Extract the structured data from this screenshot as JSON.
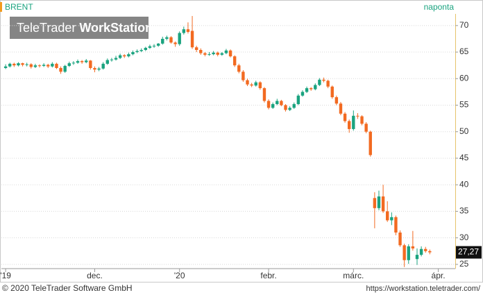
{
  "chart_data": {
    "type": "candlestick",
    "title": "BRENT",
    "interval": "naponta",
    "watermark": {
      "brand": "TeleTrader",
      "product": "WorkStation"
    },
    "footer_left": "© 2020 TeleTrader Software GmbH",
    "footer_right": "https://workstation.teletrader.com/",
    "up_color": "#1aa37f",
    "down_color": "#f26a21",
    "grid": true,
    "ylim": [
      24.2,
      72.2
    ],
    "yticks": [
      25,
      30,
      35,
      40,
      45,
      50,
      55,
      60,
      65,
      70
    ],
    "xlim": [
      -1,
      106
    ],
    "xticks": [
      {
        "value": 0,
        "label": "'19"
      },
      {
        "value": 21,
        "label": "dec."
      },
      {
        "value": 41,
        "label": "'20"
      },
      {
        "value": 62,
        "label": "febr."
      },
      {
        "value": 82,
        "label": "márc."
      },
      {
        "value": 102,
        "label": "ápr."
      }
    ],
    "last_label": "27,27",
    "ohlc": [
      [
        62.0,
        62.7,
        61.8,
        62.3
      ],
      [
        62.3,
        63.0,
        62.1,
        62.8
      ],
      [
        62.8,
        63.0,
        62.2,
        62.5
      ],
      [
        62.5,
        63.1,
        62.3,
        62.9
      ],
      [
        62.9,
        63.0,
        62.3,
        62.6
      ],
      [
        62.6,
        63.0,
        62.3,
        62.7
      ],
      [
        62.7,
        62.9,
        61.9,
        62.2
      ],
      [
        62.2,
        62.8,
        62.0,
        62.5
      ],
      [
        62.5,
        62.7,
        62.1,
        62.4
      ],
      [
        62.4,
        62.9,
        62.2,
        62.6
      ],
      [
        62.6,
        62.8,
        62.0,
        62.3
      ],
      [
        62.3,
        63.1,
        62.1,
        62.8
      ],
      [
        62.8,
        63.0,
        61.8,
        62.0
      ],
      [
        62.0,
        62.3,
        60.9,
        61.3
      ],
      [
        61.3,
        62.6,
        61.1,
        62.4
      ],
      [
        62.4,
        63.2,
        62.2,
        62.9
      ],
      [
        62.9,
        63.3,
        62.6,
        63.0
      ],
      [
        63.0,
        63.6,
        62.8,
        63.3
      ],
      [
        63.3,
        63.5,
        62.8,
        63.1
      ],
      [
        63.1,
        63.7,
        62.9,
        63.4
      ],
      [
        63.4,
        63.5,
        61.7,
        62.0
      ],
      [
        62.0,
        62.3,
        61.2,
        61.7
      ],
      [
        61.7,
        62.2,
        61.4,
        61.9
      ],
      [
        61.9,
        63.1,
        61.7,
        62.8
      ],
      [
        62.8,
        63.8,
        62.6,
        63.5
      ],
      [
        63.5,
        63.9,
        63.2,
        63.6
      ],
      [
        63.6,
        64.3,
        63.4,
        63.9
      ],
      [
        63.9,
        64.7,
        63.7,
        64.4
      ],
      [
        64.4,
        64.6,
        63.9,
        64.2
      ],
      [
        64.2,
        64.9,
        64.0,
        64.6
      ],
      [
        64.6,
        65.3,
        64.4,
        65.0
      ],
      [
        65.0,
        65.5,
        64.8,
        65.2
      ],
      [
        65.2,
        65.7,
        65.0,
        65.4
      ],
      [
        65.4,
        66.0,
        65.2,
        65.8
      ],
      [
        65.8,
        66.4,
        65.6,
        66.1
      ],
      [
        66.1,
        66.5,
        65.8,
        66.2
      ],
      [
        66.2,
        66.7,
        66.0,
        66.6
      ],
      [
        66.6,
        67.9,
        66.4,
        67.5
      ],
      [
        67.5,
        68.1,
        67.2,
        67.8
      ],
      [
        67.8,
        68.0,
        66.6,
        66.8
      ],
      [
        66.8,
        67.0,
        66.0,
        66.5
      ],
      [
        66.5,
        68.9,
        66.2,
        68.6
      ],
      [
        68.6,
        69.8,
        68.3,
        69.3
      ],
      [
        69.3,
        70.6,
        68.5,
        68.8
      ],
      [
        69.0,
        71.8,
        65.6,
        65.9
      ],
      [
        65.9,
        66.2,
        65.0,
        65.4
      ],
      [
        65.4,
        65.7,
        64.5,
        64.8
      ],
      [
        64.8,
        65.0,
        64.2,
        64.5
      ],
      [
        64.5,
        65.0,
        64.3,
        64.6
      ],
      [
        64.6,
        65.2,
        64.4,
        64.9
      ],
      [
        64.9,
        65.1,
        64.2,
        64.5
      ],
      [
        64.5,
        65.0,
        64.3,
        64.8
      ],
      [
        64.8,
        65.6,
        64.6,
        65.3
      ],
      [
        65.3,
        65.5,
        64.0,
        64.2
      ],
      [
        64.2,
        64.4,
        62.2,
        62.5
      ],
      [
        62.5,
        62.8,
        61.0,
        61.3
      ],
      [
        61.3,
        61.6,
        59.4,
        59.7
      ],
      [
        59.7,
        60.0,
        58.6,
        58.9
      ],
      [
        58.9,
        59.2,
        58.4,
        58.7
      ],
      [
        58.7,
        59.6,
        58.5,
        59.3
      ],
      [
        59.3,
        59.5,
        57.9,
        58.2
      ],
      [
        58.2,
        58.4,
        55.5,
        55.8
      ],
      [
        55.8,
        56.1,
        54.2,
        54.5
      ],
      [
        54.5,
        55.5,
        54.3,
        55.2
      ],
      [
        55.2,
        56.2,
        55.0,
        55.8
      ],
      [
        55.8,
        56.0,
        54.8,
        55.0
      ],
      [
        55.0,
        55.2,
        53.8,
        54.1
      ],
      [
        54.1,
        54.8,
        53.9,
        54.5
      ],
      [
        54.5,
        55.5,
        54.3,
        55.2
      ],
      [
        55.2,
        57.1,
        55.0,
        56.8
      ],
      [
        56.8,
        57.8,
        56.6,
        57.5
      ],
      [
        57.5,
        58.5,
        57.3,
        58.2
      ],
      [
        58.2,
        58.4,
        57.7,
        58.0
      ],
      [
        58.0,
        59.1,
        57.8,
        58.8
      ],
      [
        58.8,
        60.1,
        58.6,
        59.8
      ],
      [
        59.8,
        60.2,
        59.3,
        59.6
      ],
      [
        59.6,
        59.8,
        58.2,
        58.5
      ],
      [
        58.5,
        58.7,
        56.2,
        56.5
      ],
      [
        56.5,
        56.8,
        55.0,
        55.3
      ],
      [
        55.3,
        55.6,
        53.1,
        53.4
      ],
      [
        53.4,
        53.7,
        51.7,
        52.0
      ],
      [
        52.0,
        52.3,
        49.8,
        50.5
      ],
      [
        50.5,
        54.0,
        50.2,
        53.0
      ],
      [
        53.0,
        53.5,
        52.4,
        52.9
      ],
      [
        52.9,
        53.1,
        51.2,
        51.5
      ],
      [
        51.5,
        51.8,
        49.7,
        50.0
      ],
      [
        50.0,
        50.2,
        45.3,
        45.6
      ],
      [
        37.5,
        38.6,
        31.8,
        35.6
      ],
      [
        35.6,
        38.9,
        35.2,
        37.8
      ],
      [
        37.8,
        40.0,
        34.7,
        35.0
      ],
      [
        35.0,
        36.9,
        33.0,
        33.3
      ],
      [
        33.3,
        34.8,
        32.4,
        33.9
      ],
      [
        33.9,
        34.2,
        30.5,
        31.0
      ],
      [
        31.0,
        31.4,
        28.3,
        28.6
      ],
      [
        28.6,
        28.9,
        24.5,
        25.8
      ],
      [
        25.8,
        28.8,
        25.1,
        28.4
      ],
      [
        28.4,
        31.3,
        27.6,
        28.0
      ],
      [
        26.0,
        28.0,
        24.9,
        26.8
      ],
      [
        26.8,
        28.4,
        26.5,
        27.9
      ],
      [
        27.9,
        28.3,
        27.2,
        27.5
      ],
      [
        27.5,
        27.8,
        26.9,
        27.27
      ]
    ]
  }
}
